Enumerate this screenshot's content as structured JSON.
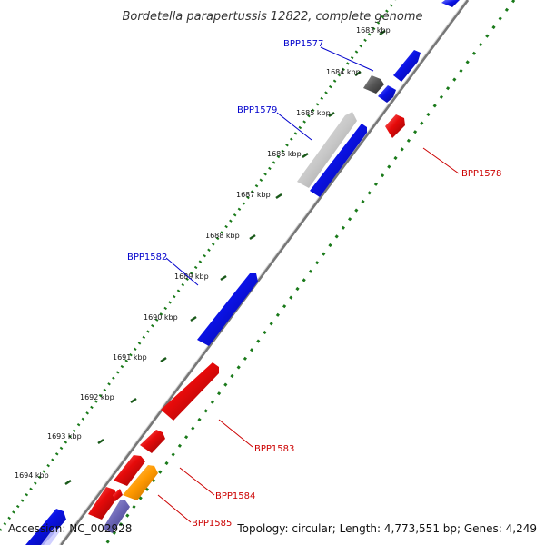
{
  "title": "Bordetella parapertussis 12822, complete genome",
  "accession": "Accession: NC_002928",
  "summary": "Topology: circular; Length: 4,773,551 bp; Genes: 4,249",
  "ticks": [
    "1683 kbp",
    "1684 kbp",
    "1685 kbp",
    "1686 kbp",
    "1687 kbp",
    "1688 kbp",
    "1689 kbp",
    "1690 kbp",
    "1691 kbp",
    "1692 kbp",
    "1693 kbp",
    "1694 kbp"
  ],
  "gene_labels": {
    "bpp1577": "BPP1577",
    "bpp1578": "BPP1578",
    "bpp1579": "BPP1579",
    "bpp1582": "BPP1582",
    "bpp1583": "BPP1583",
    "bpp1584": "BPP1584",
    "bpp1585": "BPP1585"
  },
  "colors": {
    "forward": "#0a12e6",
    "reverse": "#e60a0a",
    "label_forward": "#0000cc",
    "label_reverse": "#cc0000",
    "orange": "#ff9900",
    "slate": "#6a64b4",
    "gray_dark": "#555555",
    "gray_light": "#c8c8c8",
    "backbone": "#777777",
    "gc_dots": "#1a7a1a"
  }
}
